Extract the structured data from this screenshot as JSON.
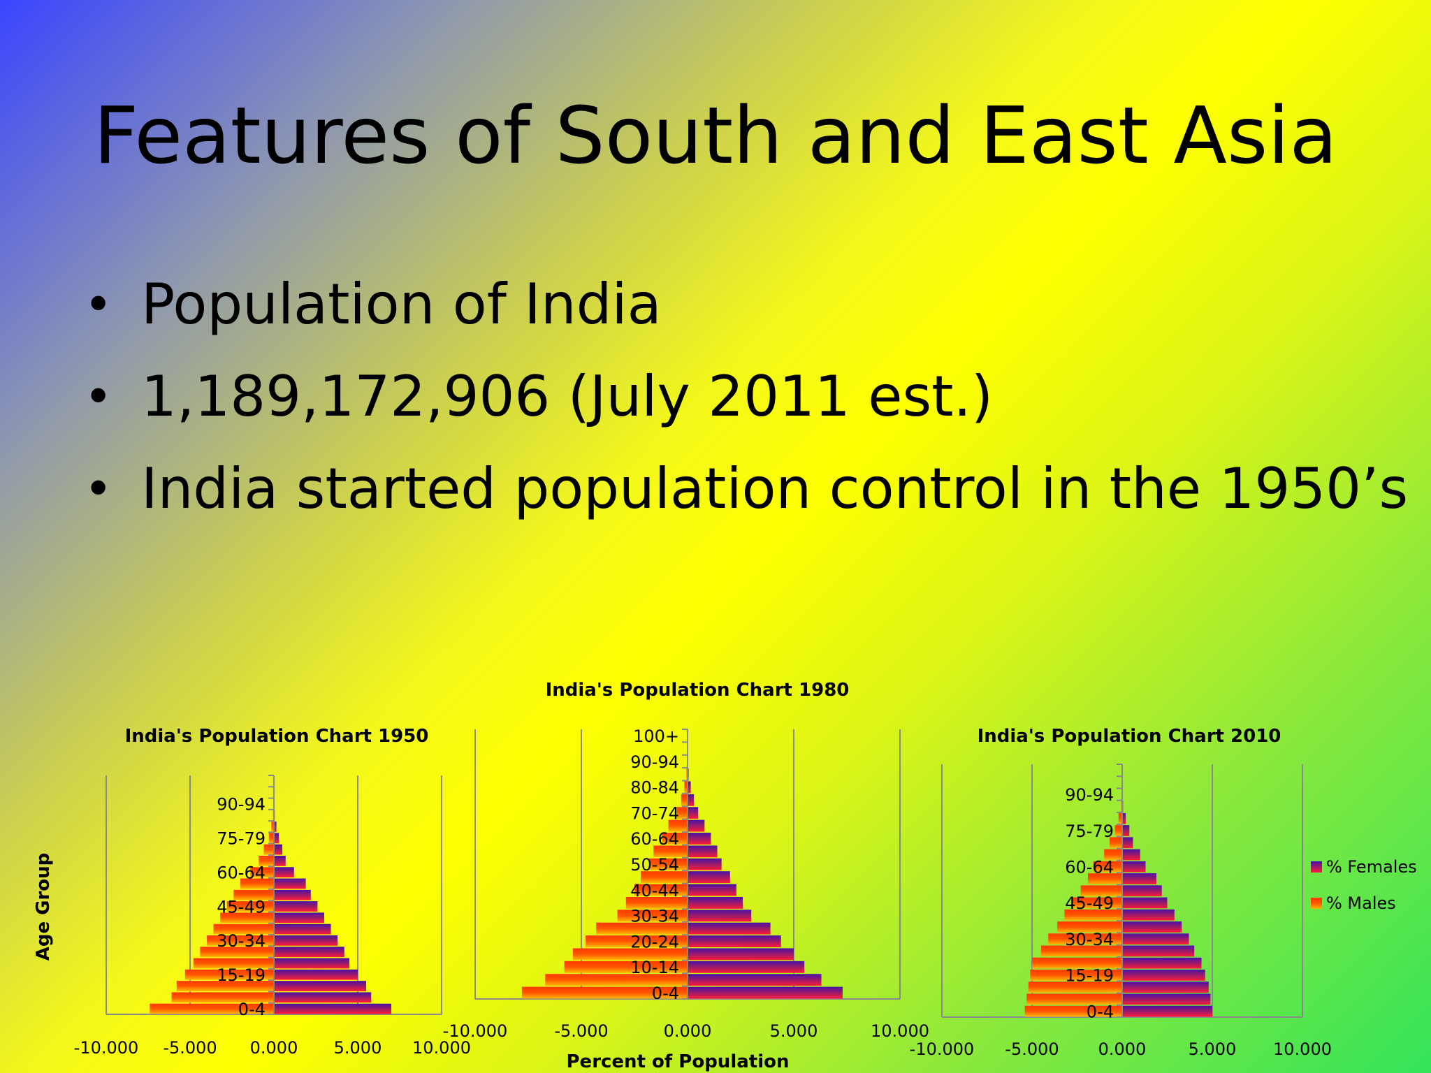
{
  "slide": {
    "title": "Features of South and East Asia",
    "bullets": [
      "Population of India",
      "1,189,172,906 (July 2011 est.)",
      "India started population control in the 1950’s"
    ]
  },
  "colors": {
    "males": "#ff4400",
    "females": "#6a1a9a"
  },
  "chart_data": [
    {
      "type": "bar",
      "title": "India's Population Chart 1950",
      "ylabel": "Age Group",
      "xlabel": "",
      "xlim": [
        -10,
        10
      ],
      "x_ticks": [
        "-10.000",
        "-5.000",
        "0.000",
        "5.000",
        "10.000"
      ],
      "y_tick_labels": [
        "0-4",
        "15-19",
        "30-34",
        "45-49",
        "60-64",
        "75-79",
        "90-94"
      ],
      "categories": [
        "0-4",
        "5-9",
        "10-14",
        "15-19",
        "20-24",
        "25-29",
        "30-34",
        "35-39",
        "40-44",
        "45-49",
        "50-54",
        "55-59",
        "60-64",
        "65-69",
        "70-74",
        "75-79",
        "80-84",
        "85-89",
        "90-94",
        "95-99",
        "100+"
      ],
      "series": [
        {
          "name": "% Males",
          "values": [
            -7.4,
            -6.1,
            -5.8,
            -5.3,
            -4.8,
            -4.4,
            -4.0,
            -3.6,
            -3.2,
            -2.8,
            -2.4,
            -2.0,
            -1.4,
            -0.9,
            -0.6,
            -0.3,
            -0.15,
            -0.05,
            0,
            0,
            0
          ]
        },
        {
          "name": "% Females",
          "values": [
            7.0,
            5.8,
            5.5,
            5.0,
            4.5,
            4.2,
            3.8,
            3.4,
            3.0,
            2.6,
            2.2,
            1.9,
            1.2,
            0.7,
            0.5,
            0.3,
            0.15,
            0.05,
            0,
            0,
            0
          ]
        }
      ]
    },
    {
      "type": "bar",
      "title": "India's Population Chart 1980",
      "ylabel": "",
      "xlabel": "Percent of Population",
      "xlim": [
        -10,
        10
      ],
      "x_ticks": [
        "-10.000",
        "-5.000",
        "0.000",
        "5.000",
        "10.000"
      ],
      "y_tick_labels": [
        "0-4",
        "10-14",
        "20-24",
        "30-34",
        "40-44",
        "50-54",
        "60-64",
        "70-74",
        "80-84",
        "90-94",
        "100+"
      ],
      "categories": [
        "0-4",
        "5-9",
        "10-14",
        "15-19",
        "20-24",
        "25-29",
        "30-34",
        "35-39",
        "40-44",
        "45-49",
        "50-54",
        "55-59",
        "60-64",
        "65-69",
        "70-74",
        "75-79",
        "80-84",
        "85-89",
        "90-94",
        "95-99",
        "100+"
      ],
      "series": [
        {
          "name": "% Males",
          "values": [
            -7.8,
            -6.7,
            -5.8,
            -5.4,
            -4.8,
            -4.3,
            -3.3,
            -2.9,
            -2.5,
            -2.2,
            -1.8,
            -1.6,
            -1.2,
            -0.9,
            -0.5,
            -0.3,
            -0.15,
            -0.05,
            0,
            0,
            0
          ]
        },
        {
          "name": "% Females",
          "values": [
            7.3,
            6.3,
            5.5,
            5.0,
            4.4,
            3.9,
            3.0,
            2.6,
            2.3,
            2.0,
            1.6,
            1.4,
            1.1,
            0.8,
            0.5,
            0.3,
            0.15,
            0.05,
            0,
            0,
            0
          ]
        }
      ]
    },
    {
      "type": "bar",
      "title": "India's Population Chart 2010",
      "ylabel": "",
      "xlabel": "",
      "xlim": [
        -10,
        10
      ],
      "x_ticks": [
        "-10.000",
        "-5.000",
        "0.000",
        "5.000",
        "10.000"
      ],
      "y_tick_labels": [
        "0-4",
        "15-19",
        "30-34",
        "45-49",
        "60-64",
        "75-79",
        "90-94"
      ],
      "categories": [
        "0-4",
        "5-9",
        "10-14",
        "15-19",
        "20-24",
        "25-29",
        "30-34",
        "35-39",
        "40-44",
        "45-49",
        "50-54",
        "55-59",
        "60-64",
        "65-69",
        "70-74",
        "75-79",
        "80-84",
        "85-89",
        "90-94",
        "95-99",
        "100+"
      ],
      "series": [
        {
          "name": "% Males",
          "values": [
            -5.4,
            -5.3,
            -5.2,
            -5.1,
            -5.0,
            -4.5,
            -4.1,
            -3.6,
            -3.2,
            -2.8,
            -2.3,
            -1.9,
            -1.6,
            -1.0,
            -0.7,
            -0.4,
            -0.2,
            -0.05,
            0,
            0,
            0
          ]
        },
        {
          "name": "% Females",
          "values": [
            5.0,
            4.9,
            4.8,
            4.6,
            4.4,
            4.0,
            3.7,
            3.3,
            2.9,
            2.5,
            2.2,
            1.9,
            1.3,
            1.0,
            0.6,
            0.4,
            0.2,
            0.05,
            0,
            0,
            0
          ]
        }
      ],
      "legend": {
        "position": "right",
        "entries": [
          "% Females",
          "% Males"
        ]
      }
    }
  ]
}
